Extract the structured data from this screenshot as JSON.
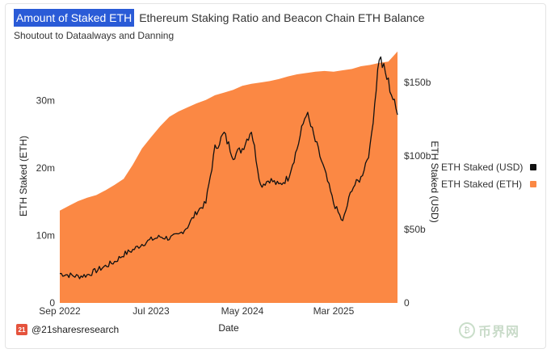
{
  "header": {
    "tab_title": "Amount of Staked ETH",
    "title": "Ethereum Staking Ratio and Beacon Chain ETH Balance",
    "subtitle": "Shoutout to Dataalways and Danning"
  },
  "footer": {
    "brand_logo": "21",
    "brand": "@21sharesresearch"
  },
  "chart_data": {
    "type": "area",
    "xlabel": "Date",
    "ylabel_left": "ETH Staked (ETH)",
    "ylabel_right": "ETH Staked (USD)",
    "x_ticks": [
      "Sep 2022",
      "Jul 2023",
      "May 2024",
      "Mar 2025"
    ],
    "y_left_ticks": [
      "0",
      "10m",
      "20m",
      "30m"
    ],
    "y_right_ticks": [
      "0",
      "$50b",
      "$100b",
      "$150b"
    ],
    "y_left_range": [
      0,
      37.5
    ],
    "y_right_range": [
      0,
      172
    ],
    "legend_position": "right",
    "colors": {
      "eth": "#fb8844",
      "usd": "#111111"
    },
    "series": [
      {
        "name": "ETH Staked (ETH)",
        "axis": "left",
        "kind": "area",
        "unit": "million ETH",
        "x": [
          "2022-09",
          "2022-10",
          "2022-11",
          "2022-12",
          "2023-01",
          "2023-02",
          "2023-03",
          "2023-04",
          "2023-05",
          "2023-06",
          "2023-07",
          "2023-08",
          "2023-09",
          "2023-10",
          "2023-11",
          "2023-12",
          "2024-01",
          "2024-02",
          "2024-03",
          "2024-04",
          "2024-05",
          "2024-06",
          "2024-07",
          "2024-08",
          "2024-09",
          "2024-10",
          "2024-11",
          "2024-12",
          "2025-01",
          "2025-02",
          "2025-03",
          "2025-04",
          "2025-05",
          "2025-06",
          "2025-07",
          "2025-08",
          "2025-09",
          "2025-10"
        ],
        "values": [
          13.7,
          14.4,
          15.1,
          15.6,
          16.0,
          16.7,
          17.5,
          18.4,
          20.5,
          22.9,
          24.6,
          26.2,
          27.6,
          28.4,
          29.0,
          29.6,
          30.1,
          30.8,
          31.2,
          31.6,
          32.2,
          32.5,
          32.7,
          32.9,
          33.2,
          33.6,
          33.9,
          34.1,
          34.3,
          34.4,
          34.3,
          34.5,
          34.7,
          35.1,
          35.3,
          35.6,
          35.8,
          37.3
        ]
      },
      {
        "name": "ETH Staked (USD)",
        "axis": "right",
        "kind": "line",
        "unit": "billion USD",
        "x": [
          "2022-09",
          "2022-10",
          "2022-11",
          "2022-12",
          "2023-01",
          "2023-02",
          "2023-03",
          "2023-04",
          "2023-05",
          "2023-06",
          "2023-07",
          "2023-08",
          "2023-09",
          "2023-10",
          "2023-11",
          "2023-12",
          "2024-01",
          "2024-02",
          "2024-03",
          "2024-04",
          "2024-05",
          "2024-06",
          "2024-07",
          "2024-08",
          "2024-09",
          "2024-10",
          "2024-11",
          "2024-12",
          "2025-01",
          "2025-02",
          "2025-03",
          "2025-04",
          "2025-05",
          "2025-06",
          "2025-07",
          "2025-08",
          "2025-09",
          "2025-10"
        ],
        "values": [
          20,
          19,
          18,
          19,
          22,
          25,
          28,
          33,
          36,
          40,
          43,
          45,
          44,
          46,
          52,
          62,
          68,
          105,
          115,
          100,
          105,
          118,
          80,
          84,
          80,
          85,
          105,
          130,
          110,
          90,
          68,
          55,
          78,
          85,
          105,
          168,
          150,
          128
        ]
      }
    ]
  }
}
